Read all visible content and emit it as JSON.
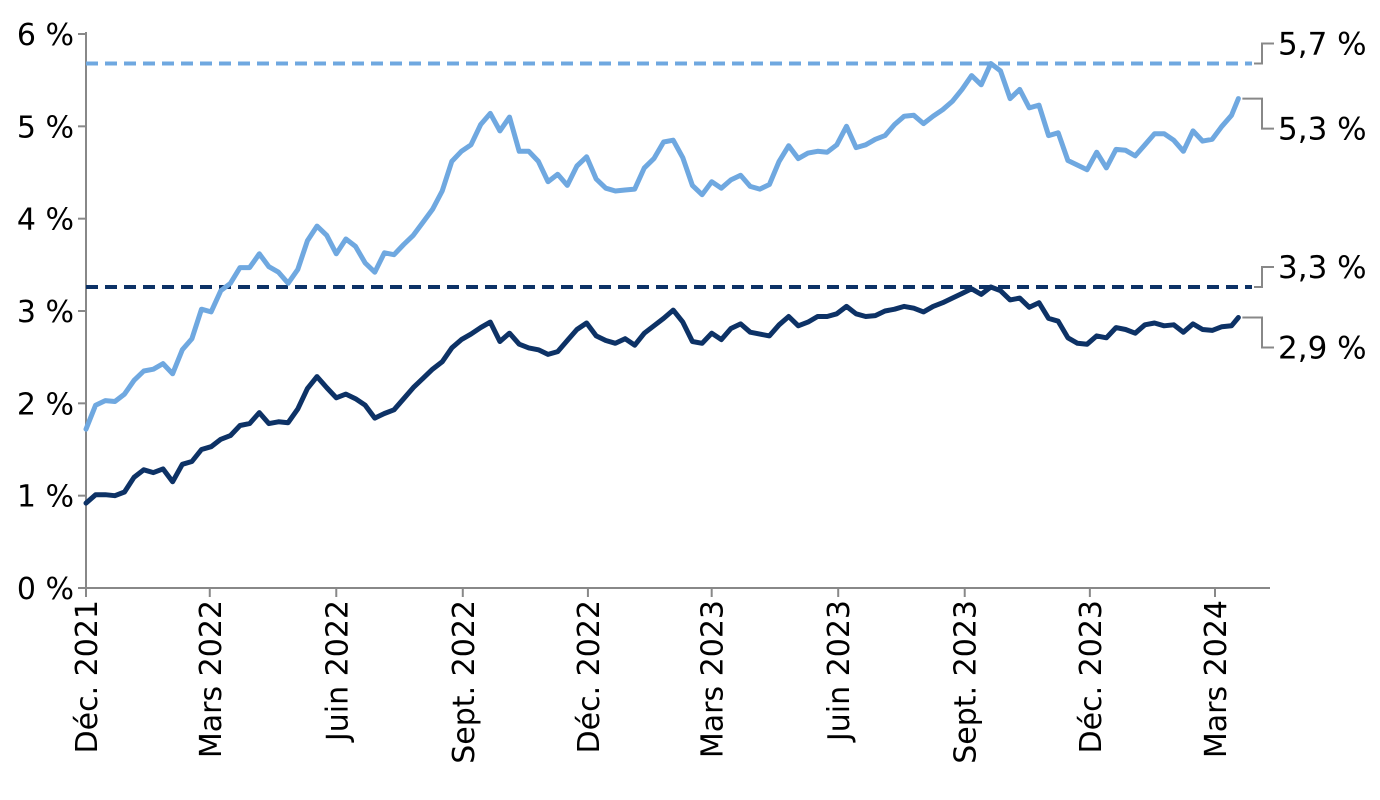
{
  "chart_data": {
    "type": "line",
    "title": "",
    "xlabel": "",
    "ylabel": "",
    "ylim": [
      0,
      6
    ],
    "y_ticks": [
      0,
      1,
      2,
      3,
      4,
      5,
      6
    ],
    "y_tick_labels": [
      "0 %",
      "1 %",
      "2 %",
      "3 %",
      "4 %",
      "5 %",
      "6 %"
    ],
    "x_ticks": [
      {
        "date": "2021-12-01",
        "label": "Déc. 2021"
      },
      {
        "date": "2022-03-01",
        "label": "Mars 2022"
      },
      {
        "date": "2022-06-01",
        "label": "Juin 2022"
      },
      {
        "date": "2022-09-01",
        "label": "Sept. 2022"
      },
      {
        "date": "2022-12-01",
        "label": "Déc. 2022"
      },
      {
        "date": "2023-03-01",
        "label": "Mars 2023"
      },
      {
        "date": "2023-06-01",
        "label": "Juin 2023"
      },
      {
        "date": "2023-09-01",
        "label": "Sept. 2023"
      },
      {
        "date": "2023-12-01",
        "label": "Déc. 2023"
      },
      {
        "date": "2024-03-01",
        "label": "Mars 2024"
      }
    ],
    "xlim": [
      "2021-12-01",
      "2024-04-10"
    ],
    "grid": false,
    "legend": false,
    "series": [
      {
        "color": "#6fa8e0",
        "end_label": "5,3 %",
        "points": [
          [
            "2021-12-01",
            1.72
          ],
          [
            "2021-12-08",
            1.98
          ],
          [
            "2021-12-15",
            2.03
          ],
          [
            "2021-12-22",
            2.02
          ],
          [
            "2021-12-29",
            2.1
          ],
          [
            "2022-01-05",
            2.25
          ],
          [
            "2022-01-12",
            2.35
          ],
          [
            "2022-01-19",
            2.37
          ],
          [
            "2022-01-26",
            2.43
          ],
          [
            "2022-02-02",
            2.32
          ],
          [
            "2022-02-09",
            2.58
          ],
          [
            "2022-02-16",
            2.7
          ],
          [
            "2022-02-23",
            3.02
          ],
          [
            "2022-03-02",
            2.99
          ],
          [
            "2022-03-09",
            3.22
          ],
          [
            "2022-03-16",
            3.3
          ],
          [
            "2022-03-23",
            3.47
          ],
          [
            "2022-03-30",
            3.47
          ],
          [
            "2022-04-06",
            3.62
          ],
          [
            "2022-04-13",
            3.48
          ],
          [
            "2022-04-20",
            3.42
          ],
          [
            "2022-04-27",
            3.3
          ],
          [
            "2022-05-04",
            3.45
          ],
          [
            "2022-05-11",
            3.76
          ],
          [
            "2022-05-18",
            3.92
          ],
          [
            "2022-05-25",
            3.82
          ],
          [
            "2022-06-01",
            3.62
          ],
          [
            "2022-06-08",
            3.78
          ],
          [
            "2022-06-15",
            3.7
          ],
          [
            "2022-06-22",
            3.52
          ],
          [
            "2022-06-29",
            3.42
          ],
          [
            "2022-07-06",
            3.63
          ],
          [
            "2022-07-13",
            3.61
          ],
          [
            "2022-07-20",
            3.72
          ],
          [
            "2022-07-27",
            3.82
          ],
          [
            "2022-08-03",
            3.96
          ],
          [
            "2022-08-10",
            4.1
          ],
          [
            "2022-08-17",
            4.3
          ],
          [
            "2022-08-24",
            4.62
          ],
          [
            "2022-08-31",
            4.73
          ],
          [
            "2022-09-07",
            4.8
          ],
          [
            "2022-09-14",
            5.02
          ],
          [
            "2022-09-21",
            5.14
          ],
          [
            "2022-09-28",
            4.95
          ],
          [
            "2022-10-05",
            5.1
          ],
          [
            "2022-10-12",
            4.73
          ],
          [
            "2022-10-19",
            4.73
          ],
          [
            "2022-10-26",
            4.62
          ],
          [
            "2022-11-02",
            4.4
          ],
          [
            "2022-11-09",
            4.48
          ],
          [
            "2022-11-16",
            4.36
          ],
          [
            "2022-11-23",
            4.57
          ],
          [
            "2022-11-30",
            4.67
          ],
          [
            "2022-12-07",
            4.43
          ],
          [
            "2022-12-14",
            4.33
          ],
          [
            "2022-12-21",
            4.3
          ],
          [
            "2022-12-28",
            4.31
          ],
          [
            "2023-01-04",
            4.32
          ],
          [
            "2023-01-11",
            4.55
          ],
          [
            "2023-01-18",
            4.65
          ],
          [
            "2023-01-25",
            4.83
          ],
          [
            "2023-02-01",
            4.85
          ],
          [
            "2023-02-08",
            4.66
          ],
          [
            "2023-02-15",
            4.36
          ],
          [
            "2023-02-22",
            4.26
          ],
          [
            "2023-03-01",
            4.4
          ],
          [
            "2023-03-08",
            4.33
          ],
          [
            "2023-03-15",
            4.42
          ],
          [
            "2023-03-22",
            4.47
          ],
          [
            "2023-03-29",
            4.35
          ],
          [
            "2023-04-05",
            4.32
          ],
          [
            "2023-04-12",
            4.37
          ],
          [
            "2023-04-19",
            4.62
          ],
          [
            "2023-04-26",
            4.79
          ],
          [
            "2023-05-03",
            4.65
          ],
          [
            "2023-05-10",
            4.71
          ],
          [
            "2023-05-17",
            4.73
          ],
          [
            "2023-05-24",
            4.72
          ],
          [
            "2023-05-31",
            4.8
          ],
          [
            "2023-06-07",
            5.0
          ],
          [
            "2023-06-14",
            4.77
          ],
          [
            "2023-06-21",
            4.8
          ],
          [
            "2023-06-28",
            4.86
          ],
          [
            "2023-07-05",
            4.9
          ],
          [
            "2023-07-12",
            5.02
          ],
          [
            "2023-07-19",
            5.11
          ],
          [
            "2023-07-26",
            5.12
          ],
          [
            "2023-08-02",
            5.03
          ],
          [
            "2023-08-09",
            5.11
          ],
          [
            "2023-08-16",
            5.18
          ],
          [
            "2023-08-23",
            5.27
          ],
          [
            "2023-08-30",
            5.4
          ],
          [
            "2023-09-06",
            5.55
          ],
          [
            "2023-09-13",
            5.45
          ],
          [
            "2023-09-20",
            5.68
          ],
          [
            "2023-09-27",
            5.6
          ],
          [
            "2023-10-04",
            5.3
          ],
          [
            "2023-10-11",
            5.4
          ],
          [
            "2023-10-18",
            5.2
          ],
          [
            "2023-10-25",
            5.23
          ],
          [
            "2023-11-01",
            4.9
          ],
          [
            "2023-11-08",
            4.93
          ],
          [
            "2023-11-15",
            4.63
          ],
          [
            "2023-11-22",
            4.58
          ],
          [
            "2023-11-29",
            4.53
          ],
          [
            "2023-12-06",
            4.72
          ],
          [
            "2023-12-13",
            4.55
          ],
          [
            "2023-12-20",
            4.75
          ],
          [
            "2023-12-27",
            4.74
          ],
          [
            "2024-01-03",
            4.68
          ],
          [
            "2024-01-10",
            4.8
          ],
          [
            "2024-01-17",
            4.92
          ],
          [
            "2024-01-24",
            4.92
          ],
          [
            "2024-01-31",
            4.85
          ],
          [
            "2024-02-07",
            4.73
          ],
          [
            "2024-02-14",
            4.95
          ],
          [
            "2024-02-21",
            4.84
          ],
          [
            "2024-02-28",
            4.86
          ],
          [
            "2024-03-06",
            5.0
          ],
          [
            "2024-03-13",
            5.12
          ],
          [
            "2024-03-18",
            5.3
          ]
        ]
      },
      {
        "color": "#0d3266",
        "end_label": "2,9 %",
        "points": [
          [
            "2021-12-01",
            0.92
          ],
          [
            "2021-12-08",
            1.01
          ],
          [
            "2021-12-15",
            1.01
          ],
          [
            "2021-12-22",
            1.0
          ],
          [
            "2021-12-29",
            1.04
          ],
          [
            "2022-01-05",
            1.2
          ],
          [
            "2022-01-12",
            1.28
          ],
          [
            "2022-01-19",
            1.25
          ],
          [
            "2022-01-26",
            1.29
          ],
          [
            "2022-02-02",
            1.15
          ],
          [
            "2022-02-09",
            1.34
          ],
          [
            "2022-02-16",
            1.37
          ],
          [
            "2022-02-23",
            1.5
          ],
          [
            "2022-03-02",
            1.53
          ],
          [
            "2022-03-09",
            1.61
          ],
          [
            "2022-03-16",
            1.65
          ],
          [
            "2022-03-23",
            1.76
          ],
          [
            "2022-03-30",
            1.78
          ],
          [
            "2022-04-06",
            1.9
          ],
          [
            "2022-04-13",
            1.78
          ],
          [
            "2022-04-20",
            1.8
          ],
          [
            "2022-04-27",
            1.79
          ],
          [
            "2022-05-04",
            1.94
          ],
          [
            "2022-05-11",
            2.16
          ],
          [
            "2022-05-18",
            2.29
          ],
          [
            "2022-05-25",
            2.17
          ],
          [
            "2022-06-01",
            2.06
          ],
          [
            "2022-06-08",
            2.1
          ],
          [
            "2022-06-15",
            2.05
          ],
          [
            "2022-06-22",
            1.98
          ],
          [
            "2022-06-29",
            1.84
          ],
          [
            "2022-07-06",
            1.89
          ],
          [
            "2022-07-13",
            1.93
          ],
          [
            "2022-07-20",
            2.05
          ],
          [
            "2022-07-27",
            2.17
          ],
          [
            "2022-08-03",
            2.27
          ],
          [
            "2022-08-10",
            2.37
          ],
          [
            "2022-08-17",
            2.45
          ],
          [
            "2022-08-24",
            2.6
          ],
          [
            "2022-08-31",
            2.69
          ],
          [
            "2022-09-07",
            2.75
          ],
          [
            "2022-09-14",
            2.82
          ],
          [
            "2022-09-21",
            2.88
          ],
          [
            "2022-09-28",
            2.67
          ],
          [
            "2022-10-05",
            2.76
          ],
          [
            "2022-10-12",
            2.64
          ],
          [
            "2022-10-19",
            2.6
          ],
          [
            "2022-10-26",
            2.58
          ],
          [
            "2022-11-02",
            2.53
          ],
          [
            "2022-11-09",
            2.56
          ],
          [
            "2022-11-16",
            2.68
          ],
          [
            "2022-11-23",
            2.8
          ],
          [
            "2022-11-30",
            2.87
          ],
          [
            "2022-12-07",
            2.73
          ],
          [
            "2022-12-14",
            2.68
          ],
          [
            "2022-12-21",
            2.65
          ],
          [
            "2022-12-28",
            2.7
          ],
          [
            "2023-01-04",
            2.63
          ],
          [
            "2023-01-11",
            2.76
          ],
          [
            "2023-01-18",
            2.84
          ],
          [
            "2023-01-25",
            2.92
          ],
          [
            "2023-02-01",
            3.01
          ],
          [
            "2023-02-08",
            2.88
          ],
          [
            "2023-02-15",
            2.67
          ],
          [
            "2023-02-22",
            2.65
          ],
          [
            "2023-03-01",
            2.76
          ],
          [
            "2023-03-08",
            2.69
          ],
          [
            "2023-03-15",
            2.81
          ],
          [
            "2023-03-22",
            2.86
          ],
          [
            "2023-03-29",
            2.77
          ],
          [
            "2023-04-05",
            2.75
          ],
          [
            "2023-04-12",
            2.73
          ],
          [
            "2023-04-19",
            2.85
          ],
          [
            "2023-04-26",
            2.94
          ],
          [
            "2023-05-03",
            2.84
          ],
          [
            "2023-05-10",
            2.88
          ],
          [
            "2023-05-17",
            2.94
          ],
          [
            "2023-05-24",
            2.94
          ],
          [
            "2023-05-31",
            2.97
          ],
          [
            "2023-06-07",
            3.05
          ],
          [
            "2023-06-14",
            2.97
          ],
          [
            "2023-06-21",
            2.94
          ],
          [
            "2023-06-28",
            2.95
          ],
          [
            "2023-07-05",
            3.0
          ],
          [
            "2023-07-12",
            3.02
          ],
          [
            "2023-07-19",
            3.05
          ],
          [
            "2023-07-26",
            3.03
          ],
          [
            "2023-08-02",
            2.99
          ],
          [
            "2023-08-09",
            3.05
          ],
          [
            "2023-08-16",
            3.09
          ],
          [
            "2023-08-23",
            3.14
          ],
          [
            "2023-08-30",
            3.19
          ],
          [
            "2023-09-06",
            3.24
          ],
          [
            "2023-09-13",
            3.18
          ],
          [
            "2023-09-20",
            3.26
          ],
          [
            "2023-09-27",
            3.22
          ],
          [
            "2023-10-04",
            3.12
          ],
          [
            "2023-10-11",
            3.14
          ],
          [
            "2023-10-18",
            3.04
          ],
          [
            "2023-10-25",
            3.09
          ],
          [
            "2023-11-01",
            2.92
          ],
          [
            "2023-11-08",
            2.89
          ],
          [
            "2023-11-15",
            2.71
          ],
          [
            "2023-11-22",
            2.65
          ],
          [
            "2023-11-29",
            2.64
          ],
          [
            "2023-12-06",
            2.73
          ],
          [
            "2023-12-13",
            2.71
          ],
          [
            "2023-12-20",
            2.82
          ],
          [
            "2023-12-27",
            2.8
          ],
          [
            "2024-01-03",
            2.76
          ],
          [
            "2024-01-10",
            2.85
          ],
          [
            "2024-01-17",
            2.87
          ],
          [
            "2024-01-24",
            2.84
          ],
          [
            "2024-01-31",
            2.85
          ],
          [
            "2024-02-07",
            2.77
          ],
          [
            "2024-02-14",
            2.86
          ],
          [
            "2024-02-21",
            2.8
          ],
          [
            "2024-02-28",
            2.79
          ],
          [
            "2024-03-06",
            2.83
          ],
          [
            "2024-03-13",
            2.84
          ],
          [
            "2024-03-18",
            2.93
          ]
        ]
      }
    ],
    "reference_lines": [
      {
        "y": 5.68,
        "color": "#6fa8e0",
        "label": "5,7 %",
        "style": "dashed"
      },
      {
        "y": 3.26,
        "color": "#0d3266",
        "label": "3,3 %",
        "style": "dashed"
      }
    ]
  }
}
